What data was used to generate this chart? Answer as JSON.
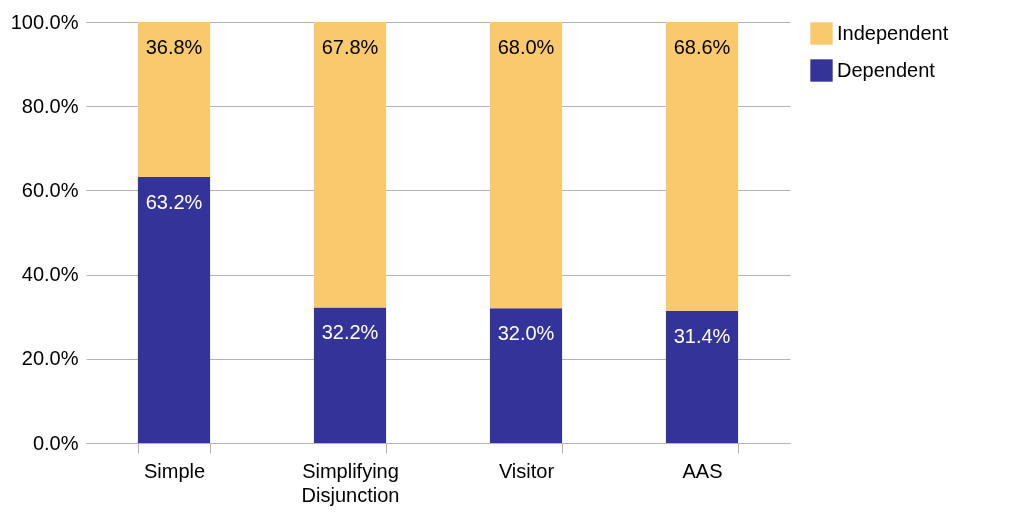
{
  "chart_data": {
    "type": "bar",
    "stacked": true,
    "categories": [
      "Simple",
      "Simplifying Disjunction",
      "Visitor",
      "AAS"
    ],
    "series": [
      {
        "name": "Dependent",
        "color": "#333399",
        "values": [
          63.2,
          32.2,
          32.0,
          31.4
        ],
        "value_labels": [
          "63.2%",
          "32.2%",
          "32.0%",
          "31.4%"
        ]
      },
      {
        "name": "Independent",
        "color": "#f8c96d",
        "values": [
          36.8,
          67.8,
          68.0,
          68.6
        ],
        "value_labels": [
          "36.8%",
          "67.8%",
          "68.0%",
          "68.6%"
        ]
      }
    ],
    "ylim": [
      0,
      100
    ],
    "yticks": [
      {
        "value": 0,
        "label": "0.0%"
      },
      {
        "value": 20,
        "label": "20.0%"
      },
      {
        "value": 40,
        "label": "40.0%"
      },
      {
        "value": 60,
        "label": "60.0%"
      },
      {
        "value": 80,
        "label": "80.0%"
      },
      {
        "value": 100,
        "label": "100.0%"
      }
    ],
    "grid": "y",
    "legend": "right"
  }
}
